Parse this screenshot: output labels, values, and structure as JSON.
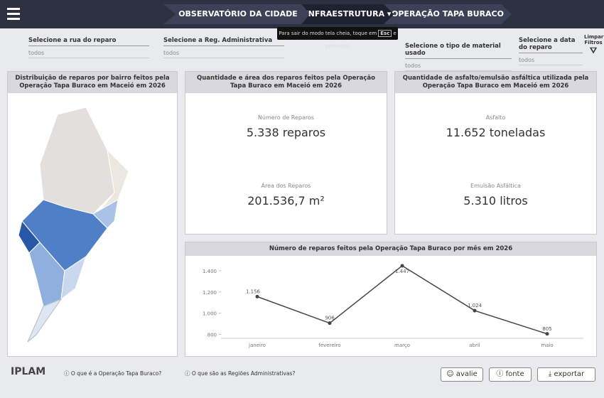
{
  "header": {
    "observatorio": "OBSERVATÓRIO DA CIDADE",
    "infraestrutura": "INFRAESTRUTURA",
    "operacao": "OPERAÇÃO TAPA BURACO",
    "tooltip_before": "Para sair do modo tela cheia, toque em",
    "tooltip_key": "Esc",
    "tooltip_after": "e pressione"
  },
  "filters": [
    {
      "label": "Selecione a rua do reparo",
      "value": "todos"
    },
    {
      "label": "Selecione a Reg. Administrativa",
      "value": "todos"
    },
    {
      "label": "Selecione o tipo de material usado",
      "value": "todos"
    },
    {
      "label": "Selecione a data do reparo",
      "value": "todos"
    }
  ],
  "clear_filters": "Limpar Filtros",
  "map": {
    "title": "Distribuição de reparos por bairro feitos pela Operação Tapa Buraco em Maceió em 2026"
  },
  "repairs_card": {
    "title": "Quantidade e área dos reparos feitos pela Operação Tapa Buraco em Maceió em 2026",
    "count_label": "Número de Reparos",
    "count_value": "5.338 reparos",
    "area_label": "Área dos Reparos",
    "area_value": "201.536,7 m²"
  },
  "material_card": {
    "title": "Quantidade de asfalto/emulsão asfáltica utilizada pela Operação Tapa Buraco em Maceió em 2026",
    "asphalt_label": "Asfalto",
    "asphalt_value": "11.652 toneladas",
    "emulsion_label": "Emulsão Asfáltica",
    "emulsion_value": "5.310 litros"
  },
  "chart_data": {
    "type": "line",
    "title": "Número de reparos feitos pela Operação Tapa Buraco por mês em 2026",
    "categories": [
      "janeiro",
      "fevereiro",
      "março",
      "abril",
      "maio"
    ],
    "values": [
      1156,
      906,
      1447,
      1024,
      805
    ],
    "value_labels": [
      "1.156",
      "906",
      "1.447",
      "1.024",
      "805"
    ],
    "color": "#444444",
    "ylim": [
      790,
      1460
    ],
    "yticks": [
      800,
      {
        "value": 1000,
        "label": "1.000"
      },
      {
        "value": 1200,
        "label": "1.200"
      },
      {
        "value": 1400,
        "label": "1.400"
      }
    ],
    "grid": false
  },
  "footer": {
    "logo": "IPLAM",
    "link1": "O que é a Operação Tapa Buraco?",
    "link2": "O que são as Regiões Administrativas?",
    "avalie": "avalie",
    "fonte": "fonte",
    "exportar": "exportar"
  }
}
